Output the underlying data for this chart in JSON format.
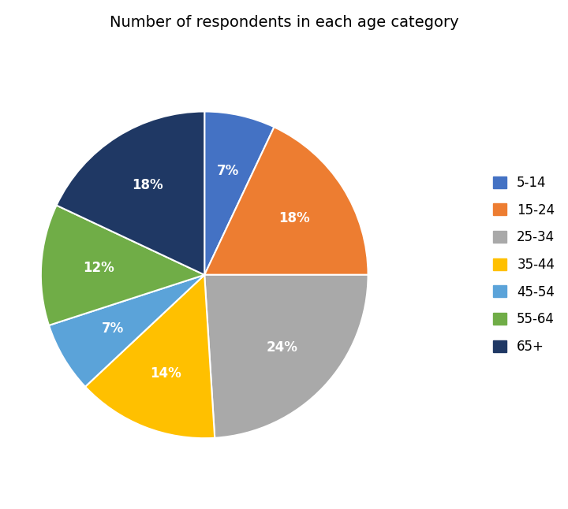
{
  "title": "Number of respondents in each age category",
  "labels": [
    "5-14",
    "15-24",
    "25-34",
    "35-44",
    "45-54",
    "55-64",
    "65+"
  ],
  "percentages": [
    7,
    18,
    24,
    14,
    7,
    12,
    18
  ],
  "colors": [
    "#4472C4",
    "#ED7D31",
    "#A9A9A9",
    "#FFC000",
    "#5BA3D9",
    "#70AD47",
    "#1F3864"
  ],
  "title_fontsize": 14,
  "label_fontsize": 12,
  "legend_fontsize": 12,
  "background_color": "#FFFFFF",
  "text_color": "#FFFFFF",
  "startangle": 90
}
